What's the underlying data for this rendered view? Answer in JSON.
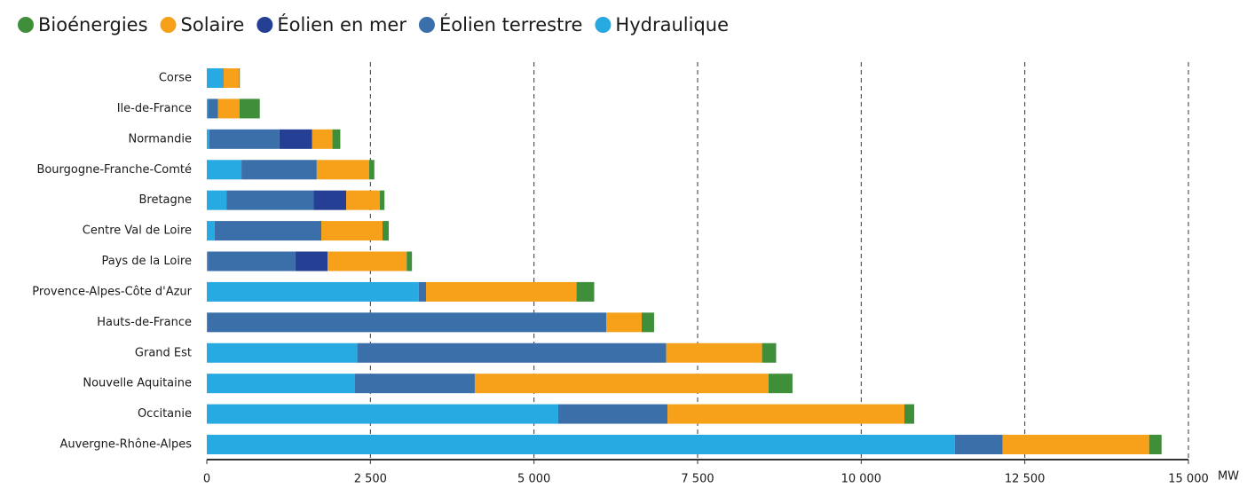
{
  "chart_data": {
    "type": "stacked-barh",
    "categories": [
      "Corse",
      "Ile-de-France",
      "Normandie",
      "Bourgogne-Franche-Comté",
      "Bretagne",
      "Centre Val de Loire",
      "Pays de la Loire",
      "Provence-Alpes-Côte d'Azur",
      "Hauts-de-France",
      "Grand Est",
      "Nouvelle Aquitaine",
      "Occitanie",
      "Auvergne-Rhône-Alpes"
    ],
    "series": [
      {
        "name": "Bioénergies",
        "color": "#3f8f3a",
        "values": [
          10,
          310,
          120,
          80,
          70,
          95,
          80,
          270,
          190,
          215,
          365,
          150,
          190
        ]
      },
      {
        "name": "Solaire",
        "color": "#f7a11a",
        "values": [
          240,
          330,
          310,
          800,
          515,
          935,
          1210,
          2300,
          540,
          1465,
          4490,
          3620,
          2240
        ]
      },
      {
        "name": "Éolien en mer",
        "color": "#243f94",
        "values": [
          0,
          0,
          500,
          0,
          500,
          0,
          490,
          0,
          0,
          0,
          0,
          0,
          0
        ]
      },
      {
        "name": "Éolien terrestre",
        "color": "#3b6faa",
        "values": [
          15,
          150,
          1070,
          1150,
          1330,
          1630,
          1340,
          110,
          6100,
          4720,
          1830,
          1670,
          730
        ]
      },
      {
        "name": "Hydraulique",
        "color": "#27a9e1",
        "values": [
          240,
          20,
          40,
          530,
          300,
          120,
          15,
          3240,
          5,
          2300,
          2265,
          5370,
          11430
        ]
      }
    ],
    "xlabel": "MW",
    "xlim": [
      0,
      15000
    ],
    "xticks": [
      0,
      {
        "value": 2500,
        "label": "2 500"
      },
      {
        "value": 5000,
        "label": "5 000"
      },
      {
        "value": 7500,
        "label": "7 500"
      },
      {
        "value": 10000,
        "label": "10 000"
      },
      {
        "value": 12500,
        "label": "12 500"
      },
      {
        "value": 15000,
        "label": "15 000"
      }
    ],
    "grid": true,
    "legend": "top"
  }
}
